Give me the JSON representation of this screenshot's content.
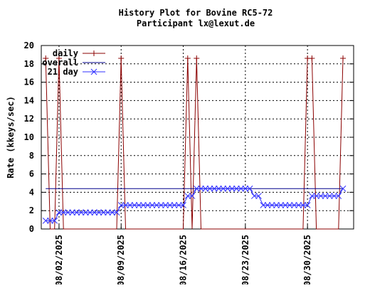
{
  "chart_data": {
    "type": "line",
    "title": "History Plot for Bovine RC5-72",
    "subtitle": "Participant lx@lexut.de",
    "ylabel": "Rate (kkeys/sec)",
    "xlabel": "",
    "ylim": [
      0,
      20
    ],
    "y_ticks": [
      0,
      2,
      4,
      6,
      8,
      10,
      12,
      14,
      16,
      18,
      20
    ],
    "x_tick_labels": [
      "08/02/2025",
      "08/09/2025",
      "08/16/2025",
      "08/23/2025",
      "08/30/2025"
    ],
    "x_tick_days": [
      2,
      9,
      16,
      23,
      30
    ],
    "grid": true,
    "legend_position": "top-left",
    "colors": {
      "daily": "#8b0000",
      "overall": "#00008b",
      "day21": "#3030ff",
      "grid": "#000000"
    },
    "series": [
      {
        "name": "daily",
        "x": [
          0.5,
          1.0,
          1.5,
          2.0,
          2.5,
          3.0,
          3.5,
          4.0,
          4.5,
          5.0,
          5.5,
          6.0,
          6.5,
          7.0,
          7.5,
          8.0,
          8.5,
          9.0,
          9.5,
          10.0,
          10.5,
          11.0,
          11.5,
          12.0,
          12.5,
          13.0,
          13.5,
          14.0,
          14.5,
          15.0,
          15.5,
          16.0,
          16.5,
          17.0,
          17.5,
          18.0,
          18.5,
          19.0,
          19.5,
          20.0,
          20.5,
          21.0,
          21.5,
          22.0,
          22.5,
          23.0,
          23.5,
          24.0,
          24.5,
          25.0,
          25.5,
          26.0,
          26.5,
          27.0,
          27.5,
          28.0,
          28.5,
          29.0,
          29.5,
          30.0,
          30.5,
          31.0,
          31.5,
          32.0,
          32.5,
          33.0,
          33.5,
          34.0
        ],
        "values": [
          18.6,
          0,
          0,
          18.6,
          0,
          0,
          0,
          0,
          0,
          0,
          0,
          0,
          0,
          0,
          0,
          0,
          0,
          18.6,
          0,
          0,
          0,
          0,
          0,
          0,
          0,
          0,
          0,
          0,
          0,
          0,
          0,
          0,
          18.6,
          0,
          18.6,
          0,
          0,
          0,
          0,
          0,
          0,
          0,
          0,
          0,
          0,
          0,
          0,
          0,
          0,
          0,
          0,
          0,
          0,
          0,
          0,
          0,
          0,
          0,
          0,
          18.6,
          18.6,
          0,
          0,
          0,
          0,
          0,
          0,
          18.6
        ]
      },
      {
        "name": "overall",
        "x": [
          0.5,
          34.0
        ],
        "values": [
          4.4,
          4.4
        ]
      },
      {
        "name": "21 day",
        "x": [
          0.5,
          1.0,
          1.5,
          2.0,
          2.5,
          3.0,
          3.5,
          4.0,
          4.5,
          5.0,
          5.5,
          6.0,
          6.5,
          7.0,
          7.5,
          8.0,
          8.5,
          9.0,
          9.5,
          10.0,
          10.5,
          11.0,
          11.5,
          12.0,
          12.5,
          13.0,
          13.5,
          14.0,
          14.5,
          15.0,
          15.5,
          16.0,
          16.5,
          17.0,
          17.5,
          18.0,
          18.5,
          19.0,
          19.5,
          20.0,
          20.5,
          21.0,
          21.5,
          22.0,
          22.5,
          23.0,
          23.5,
          24.0,
          24.5,
          25.0,
          25.5,
          26.0,
          26.5,
          27.0,
          27.5,
          28.0,
          28.5,
          29.0,
          29.5,
          30.0,
          30.5,
          31.0,
          31.5,
          32.0,
          32.5,
          33.0,
          33.5,
          34.0
        ],
        "values": [
          0.9,
          0.9,
          0.9,
          1.8,
          1.8,
          1.8,
          1.8,
          1.8,
          1.8,
          1.8,
          1.8,
          1.8,
          1.8,
          1.8,
          1.8,
          1.8,
          1.8,
          2.6,
          2.6,
          2.6,
          2.6,
          2.6,
          2.6,
          2.6,
          2.6,
          2.6,
          2.6,
          2.6,
          2.6,
          2.6,
          2.6,
          2.6,
          3.6,
          3.6,
          4.4,
          4.4,
          4.4,
          4.4,
          4.4,
          4.4,
          4.4,
          4.4,
          4.4,
          4.4,
          4.4,
          4.4,
          4.4,
          3.6,
          3.6,
          2.6,
          2.6,
          2.6,
          2.6,
          2.6,
          2.6,
          2.6,
          2.6,
          2.6,
          2.6,
          2.6,
          3.6,
          3.6,
          3.6,
          3.6,
          3.6,
          3.6,
          3.6,
          4.4
        ]
      }
    ]
  }
}
